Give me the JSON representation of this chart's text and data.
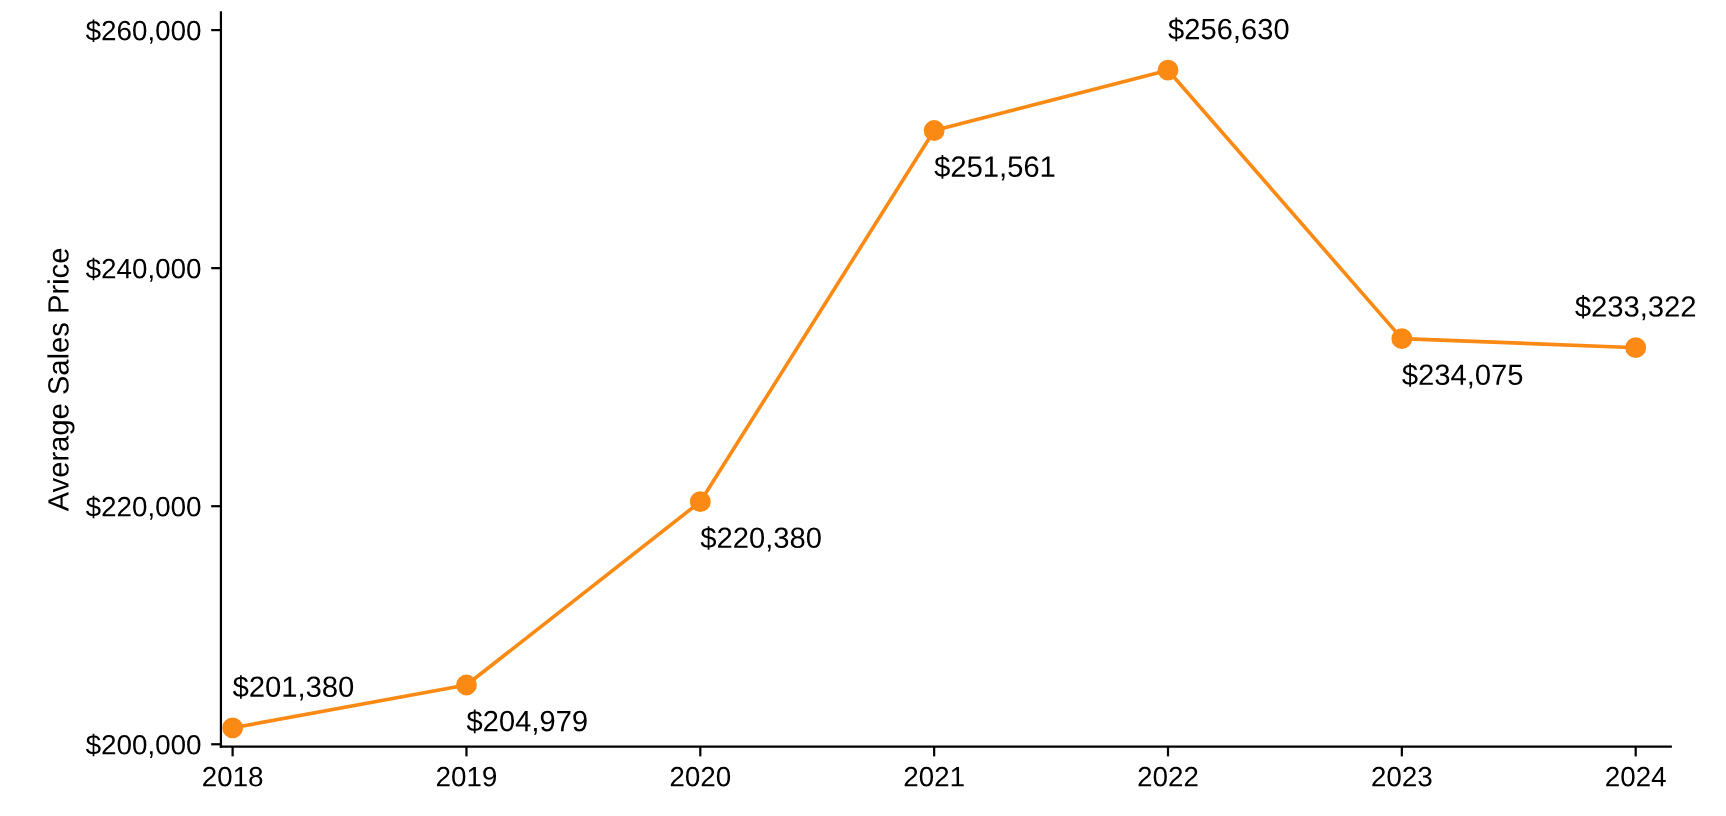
{
  "chart_data": {
    "type": "line",
    "ylabel": "Average Sales Price",
    "x": [
      2018,
      2019,
      2020,
      2021,
      2022,
      2023,
      2024
    ],
    "series": [
      {
        "color": "#fb8a14",
        "values": [
          201380,
          204979,
          220380,
          251561,
          256630,
          234075,
          233322
        ],
        "value_labels": [
          "$201,380",
          "$204,979",
          "$220,380",
          "$251,561",
          "$256,630",
          "$234,075",
          "$233,322"
        ]
      }
    ],
    "xlim": [
      2017.95,
      2024.15
    ],
    "ylim": [
      199800,
      261500
    ],
    "xticks": [
      2018,
      2019,
      2020,
      2021,
      2022,
      2023,
      2024
    ],
    "yticks": [
      {
        "value": 200000,
        "label": "$200,000"
      },
      {
        "value": 220000,
        "label": "$220,000"
      },
      {
        "value": 240000,
        "label": "$240,000"
      },
      {
        "value": 260000,
        "label": "$260,000"
      }
    ],
    "marker": "circle",
    "line_style": "solid",
    "grid": false,
    "legend": false
  }
}
